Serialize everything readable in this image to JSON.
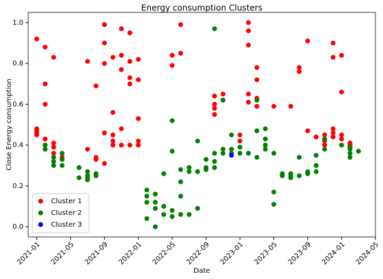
{
  "chart_data": {
    "type": "scatter",
    "title": "Energy consumption Clusters",
    "x_label": "Date",
    "y_label": "Close Energy consumption",
    "xlim": [
      "2020-12",
      "2024-05"
    ],
    "xticks": [
      "2021-01",
      "2021-05",
      "2021-09",
      "2022-01",
      "2022-05",
      "2022-09",
      "2023-01",
      "2023-05",
      "2023-09",
      "2024-01",
      "2024-05"
    ],
    "ylim": [
      -0.05,
      1.05
    ],
    "yticks": [
      {
        "value": 0,
        "label": "0.0"
      },
      {
        "value": 0.2,
        "label": "0.2"
      },
      {
        "value": 0.4,
        "label": "0.4"
      },
      {
        "value": 0.6,
        "label": "0.6"
      },
      {
        "value": 0.8,
        "label": "0.8"
      },
      {
        "value": 1,
        "label": "1.0"
      }
    ],
    "legend": "lower left",
    "series": [
      {
        "name": "Cluster 1",
        "color": "#ff0000",
        "x": [
          "2021-01",
          "2021-01",
          "2021-01",
          "2021-01",
          "2021-01",
          "2021-02",
          "2021-02",
          "2021-02",
          "2021-02",
          "2021-02",
          "2021-02",
          "2021-03",
          "2021-03",
          "2021-03",
          "2021-03",
          "2021-04",
          "2021-07",
          "2021-07",
          "2021-07",
          "2021-08",
          "2021-08",
          "2021-08",
          "2021-09",
          "2021-09",
          "2021-09",
          "2021-09",
          "2021-09",
          "2021-10",
          "2021-10",
          "2021-10",
          "2021-10",
          "2021-10",
          "2021-11",
          "2021-11",
          "2021-11",
          "2021-11",
          "2021-11",
          "2021-12",
          "2021-12",
          "2021-12",
          "2021-12",
          "2021-12",
          "2022-01",
          "2022-01",
          "2022-01",
          "2022-01",
          "2022-01",
          "2022-05",
          "2022-05",
          "2022-06",
          "2022-06",
          "2022-10",
          "2022-10",
          "2022-10",
          "2022-10",
          "2022-11",
          "2022-11",
          "2023-01",
          "2023-01",
          "2023-02",
          "2023-02",
          "2023-02",
          "2023-02",
          "2023-02",
          "2023-03",
          "2023-03",
          "2023-03",
          "2023-03",
          "2023-05",
          "2023-07",
          "2023-08",
          "2023-08",
          "2023-09",
          "2023-09",
          "2023-10",
          "2023-11",
          "2023-11",
          "2023-11",
          "2023-12",
          "2023-12",
          "2023-12",
          "2023-12",
          "2023-12",
          "2024-01",
          "2024-01",
          "2024-01",
          "2024-01",
          "2024-02",
          "2024-02"
        ],
        "values": [
          0.92,
          0.47,
          0.48,
          0.46,
          0.45,
          0.88,
          0.43,
          0.4,
          0.6,
          0.7,
          0.38,
          0.83,
          0.41,
          0.39,
          0.36,
          0.34,
          0.81,
          0.38,
          0.24,
          0.69,
          0.34,
          0.33,
          0.9,
          0.99,
          0.8,
          0.46,
          0.31,
          0.83,
          0.45,
          0.42,
          0.56,
          0.4,
          0.97,
          0.84,
          0.77,
          0.48,
          0.4,
          0.95,
          0.81,
          0.73,
          0.7,
          0.4,
          0.82,
          0.72,
          0.53,
          0.42,
          0.4,
          0.84,
          0.79,
          0.99,
          0.85,
          0.64,
          0.58,
          0.55,
          0.6,
          0.65,
          0.62,
          0.45,
          0.42,
          0.61,
          0.65,
          0.89,
          0.96,
          1.0,
          0.78,
          0.72,
          0.63,
          0.59,
          0.59,
          0.59,
          0.76,
          0.78,
          0.47,
          0.91,
          0.44,
          0.42,
          0.45,
          0.4,
          0.83,
          0.9,
          0.46,
          0.48,
          0.44,
          0.66,
          0.84,
          0.45,
          0.43,
          0.41,
          0.4
        ]
      },
      {
        "name": "Cluster 2",
        "color": "#008000",
        "x": [
          "2021-02",
          "2021-02",
          "2021-03",
          "2021-03",
          "2021-03",
          "2021-04",
          "2021-04",
          "2021-04",
          "2021-06",
          "2021-06",
          "2021-07",
          "2021-07",
          "2021-07",
          "2021-08",
          "2021-08",
          "2022-02",
          "2022-02",
          "2022-02",
          "2022-02",
          "2022-03",
          "2022-03",
          "2022-03",
          "2022-03",
          "2022-04",
          "2022-04",
          "2022-04",
          "2022-05",
          "2022-05",
          "2022-05",
          "2022-05",
          "2022-06",
          "2022-06",
          "2022-06",
          "2022-06",
          "2022-07",
          "2022-07",
          "2022-07",
          "2022-08",
          "2022-08",
          "2022-08",
          "2022-09",
          "2022-09",
          "2022-09",
          "2022-10",
          "2022-10",
          "2022-10",
          "2022-10",
          "2022-11",
          "2022-11",
          "2022-11",
          "2022-12",
          "2022-12",
          "2022-12",
          "2023-01",
          "2023-01",
          "2023-02",
          "2023-03",
          "2023-03",
          "2023-03",
          "2023-04",
          "2023-04",
          "2023-04",
          "2023-04",
          "2023-05",
          "2023-05",
          "2023-05",
          "2023-06",
          "2023-06",
          "2023-07",
          "2023-07",
          "2023-07",
          "2023-08",
          "2023-08",
          "2023-09",
          "2023-09",
          "2023-10",
          "2023-10",
          "2023-10",
          "2023-11",
          "2023-11",
          "2024-01",
          "2024-02",
          "2024-02",
          "2024-02",
          "2024-02",
          "2024-03"
        ],
        "values": [
          0.4,
          0.38,
          0.34,
          0.32,
          0.3,
          0.33,
          0.3,
          0.36,
          0.29,
          0.24,
          0.27,
          0.23,
          0.25,
          0.25,
          0.26,
          0.18,
          0.15,
          0.12,
          0.04,
          0.16,
          0.09,
          0.0,
          0.12,
          0.26,
          0.1,
          0.06,
          0.52,
          0.37,
          0.08,
          0.05,
          0.28,
          0.22,
          0.15,
          0.06,
          0.29,
          0.27,
          0.06,
          0.42,
          0.27,
          0.09,
          0.28,
          0.29,
          0.33,
          0.97,
          0.32,
          0.29,
          0.36,
          0.62,
          0.38,
          0.36,
          0.45,
          0.38,
          0.36,
          0.39,
          0.36,
          0.36,
          0.47,
          0.34,
          0.62,
          0.48,
          0.43,
          0.4,
          0.38,
          0.36,
          0.17,
          0.11,
          0.25,
          0.26,
          0.25,
          0.24,
          0.26,
          0.25,
          0.34,
          0.27,
          0.26,
          0.35,
          0.3,
          0.27,
          0.38,
          0.43,
          0.4,
          0.39,
          0.38,
          0.36,
          0.34,
          0.37
        ]
      },
      {
        "name": "Cluster 3",
        "color": "#0000ff",
        "x": [
          "2022-12"
        ],
        "values": [
          0.35
        ]
      }
    ]
  }
}
